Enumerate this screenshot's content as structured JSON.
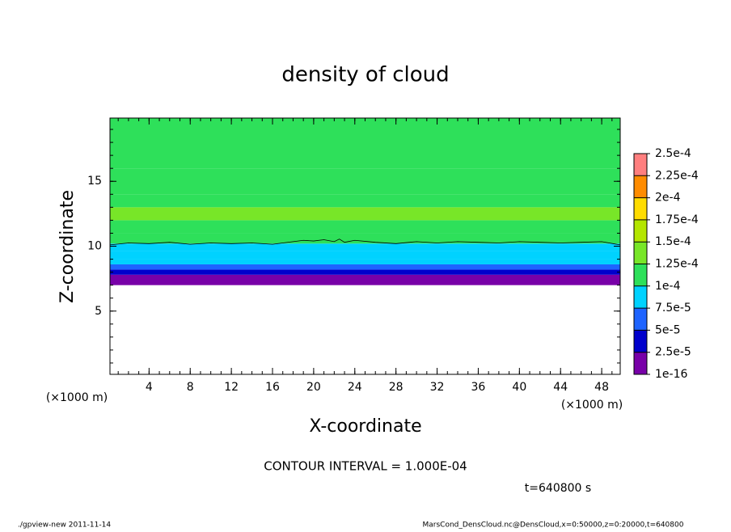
{
  "chart_data": {
    "type": "contour",
    "title": "density of cloud",
    "xlabel": "X-coordinate",
    "ylabel": "Z-coordinate",
    "x_unit_label": "(×1000 m)",
    "xlim": [
      0.2,
      49.8
    ],
    "ylim": [
      0.125,
      19.875
    ],
    "xticks": [
      4,
      8,
      12,
      16,
      20,
      24,
      28,
      32,
      36,
      40,
      44,
      48
    ],
    "yticks": [
      5,
      10,
      15
    ],
    "profile": {
      "z_edges": [
        7.0,
        7.8,
        8.2,
        8.6,
        9.0,
        9.6,
        10.2,
        11.0,
        12.0,
        13.0,
        14.0,
        16.0,
        19.875
      ],
      "values": [
        1.5e-05,
        3.5e-05,
        6e-05,
        8e-05,
        9e-05,
        9.6e-05,
        0.00011,
        0.00012,
        0.00013,
        0.00012,
        0.000115,
        0.00011
      ]
    },
    "contour": {
      "x": [
        0.2,
        2,
        4,
        6,
        8,
        10,
        12,
        14,
        16,
        18,
        19,
        20,
        21,
        22,
        22.5,
        23,
        24,
        26,
        28,
        30,
        32,
        34,
        36,
        38,
        40,
        42,
        44,
        46,
        48,
        49.8
      ],
      "z": [
        10.1,
        10.25,
        10.2,
        10.3,
        10.15,
        10.25,
        10.2,
        10.25,
        10.15,
        10.35,
        10.45,
        10.4,
        10.5,
        10.35,
        10.55,
        10.3,
        10.45,
        10.3,
        10.2,
        10.35,
        10.25,
        10.35,
        10.3,
        10.25,
        10.35,
        10.3,
        10.25,
        10.3,
        10.35,
        10.1
      ]
    },
    "colorbar_ticks": [
      1e-16,
      {
        "value": 2.5e-05,
        "label": "2.5e-5"
      },
      {
        "value": 5e-05,
        "label": "5e-5"
      },
      {
        "value": 7.5e-05,
        "label": "7.5e-5"
      },
      {
        "value": 0.0001,
        "label": "1e-4"
      },
      {
        "value": 0.000125,
        "label": "1.25e-4"
      },
      {
        "value": 0.00015,
        "label": "1.5e-4"
      },
      {
        "value": 0.000175,
        "label": "1.75e-4"
      },
      {
        "value": 0.0002,
        "label": "2e-4"
      },
      {
        "value": 0.000225,
        "label": "2.25e-4"
      },
      {
        "value": 0.00025,
        "label": "2.5e-4"
      }
    ],
    "colorbar_colors": [
      "#7800a8",
      "#0000cc",
      "#1e64ff",
      "#00d2ff",
      "#2ee05a",
      "#78e628",
      "#b4e600",
      "#ffdc00",
      "#ff8c00",
      "#ff7f7f"
    ],
    "contour_interval_text": "CONTOUR INTERVAL = 1.000E-04",
    "time_text": "t=640800 s",
    "footer_left": "./gpview-new  2011-11-14",
    "footer_right": "MarsCond_DensCloud.nc@DensCloud,x=0:50000,z=0:20000,t=640800"
  }
}
